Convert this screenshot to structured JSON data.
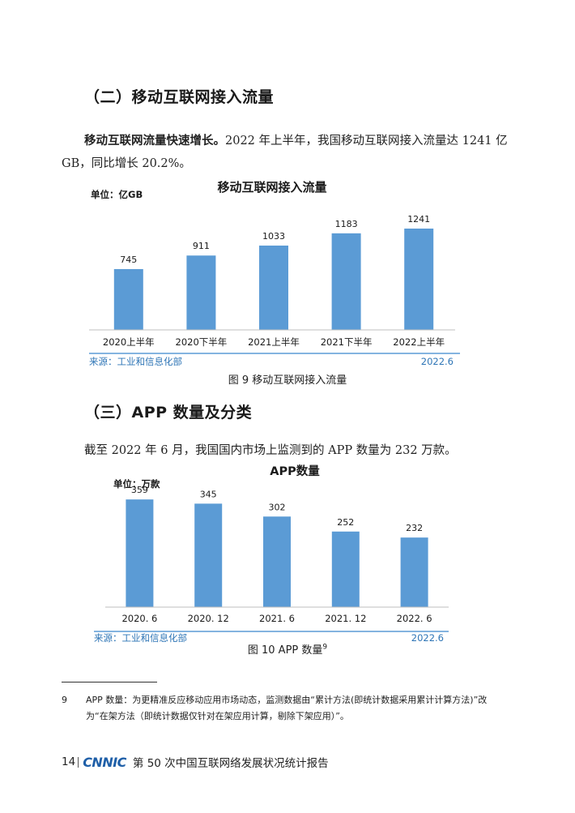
{
  "section2": {
    "heading": "（二）移动互联网接入流量",
    "lead_bold": "移动互联网流量快速增长。",
    "text": "2022 年上半年，我国移动互联网接入流量达 1241 亿 GB，同比增长 20.2%。"
  },
  "figure9": {
    "caption": "图 9  移动互联网接入流量",
    "chart_data": {
      "type": "bar",
      "title": "移动互联网接入流量",
      "unit_label": "单位：亿GB",
      "categories": [
        "2020上半年",
        "2020下半年",
        "2021上半年",
        "2021下半年",
        "2022上半年"
      ],
      "values": [
        745,
        911,
        1033,
        1183,
        1241
      ],
      "ylim": [
        0,
        1400
      ],
      "source": "来源：工业和信息化部",
      "date": "2022.6",
      "bar_color": "#5b9bd5"
    }
  },
  "section3": {
    "heading": "（三）APP 数量及分类",
    "text": "截至 2022 年 6 月，我国国内市场上监测到的 APP 数量为 232 万款。"
  },
  "figure10": {
    "caption": "图 10  APP 数量",
    "caption_sup": "9",
    "chart_data": {
      "type": "bar",
      "title": "APP数量",
      "unit_label": "单位：万款",
      "categories": [
        "2020. 6",
        "2020. 12",
        "2021. 6",
        "2021. 12",
        "2022. 6"
      ],
      "values": [
        359,
        345,
        302,
        252,
        232
      ],
      "ylim": [
        0,
        400
      ],
      "source": "来源：工业和信息化部",
      "date": "2022.6",
      "bar_color": "#5b9bd5"
    }
  },
  "footnote": {
    "number": "9",
    "text": "APP 数量：为更精准反应移动应用市场动态，监测数据由“累计方法(即统计数据采用累计计算方法)”改为“在架方法（即统计数据仅针对在架应用计算，剔除下架应用）”。"
  },
  "footer": {
    "page_number": "14",
    "logo": "CNNIC",
    "report_title": "第 50 次中国互联网络发展状况统计报告"
  }
}
